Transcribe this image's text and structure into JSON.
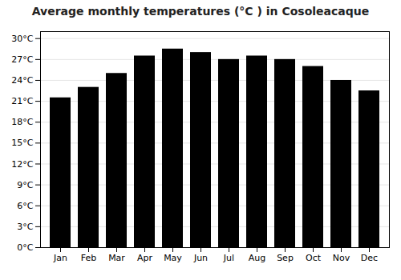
{
  "chart_data": {
    "type": "bar",
    "title": "Average monthly temperatures (°C ) in Cosoleacaque",
    "categories": [
      "Jan",
      "Feb",
      "Mar",
      "Apr",
      "May",
      "Jun",
      "Jul",
      "Aug",
      "Sep",
      "Oct",
      "Nov",
      "Dec"
    ],
    "values": [
      21.5,
      23.0,
      25.0,
      27.5,
      28.5,
      28.0,
      27.0,
      27.5,
      27.0,
      26.0,
      24.0,
      22.5
    ],
    "ylim": [
      0,
      31
    ],
    "yticks": [
      {
        "value": 0,
        "label": "0°C"
      },
      {
        "value": 3,
        "label": "3°C"
      },
      {
        "value": 6,
        "label": "6°C"
      },
      {
        "value": 9,
        "label": "9°C"
      },
      {
        "value": 12,
        "label": "12°C"
      },
      {
        "value": 15,
        "label": "15°C"
      },
      {
        "value": 18,
        "label": "18°C"
      },
      {
        "value": 21,
        "label": "21°C"
      },
      {
        "value": 24,
        "label": "24°C"
      },
      {
        "value": 27,
        "label": "27°C"
      },
      {
        "value": 30,
        "label": "30°C"
      }
    ],
    "grid": true
  }
}
